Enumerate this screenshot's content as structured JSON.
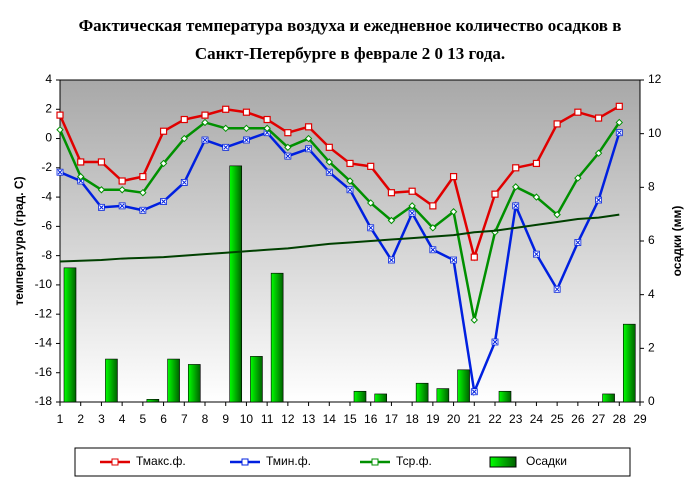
{
  "chart_data": {
    "type": "line",
    "title": "Фактическая температура воздуха и ежедневное количество осадков в Санкт-Петербурге в феврале 2 0 13 года.",
    "ylabel": "температура (град. С)",
    "y2label": "осадки (мм)",
    "x": [
      1,
      2,
      3,
      4,
      5,
      6,
      7,
      8,
      9,
      10,
      11,
      12,
      13,
      14,
      15,
      16,
      17,
      18,
      19,
      20,
      21,
      22,
      23,
      24,
      25,
      26,
      27,
      28
    ],
    "xlim": [
      1,
      29
    ],
    "xticks": [
      1,
      2,
      3,
      4,
      5,
      6,
      7,
      8,
      9,
      10,
      11,
      12,
      13,
      14,
      15,
      16,
      17,
      18,
      19,
      20,
      21,
      22,
      23,
      24,
      25,
      26,
      27,
      28,
      29
    ],
    "ylim": [
      -18,
      4
    ],
    "yticks": [
      -18,
      -16,
      -14,
      -12,
      -10,
      -8,
      -6,
      -4,
      -2,
      0,
      2,
      4
    ],
    "y2lim": [
      0,
      12
    ],
    "y2ticks": [
      0,
      2,
      4,
      6,
      8,
      10,
      12
    ],
    "series": [
      {
        "name": "Тмакс.ф.",
        "color": "#e00000",
        "marker": "square",
        "values": [
          1.6,
          -1.6,
          -1.6,
          -2.9,
          -2.6,
          0.5,
          1.3,
          1.6,
          2.0,
          1.8,
          1.3,
          0.4,
          0.8,
          -0.6,
          -1.7,
          -1.9,
          -3.7,
          -3.6,
          -4.6,
          -2.6,
          -8.1,
          -3.8,
          -2.0,
          -1.7,
          1.0,
          1.8,
          1.4,
          2.2
        ]
      },
      {
        "name": "Тмин.ф.",
        "color": "#0020e0",
        "marker": "x",
        "values": [
          -2.3,
          -2.9,
          -4.7,
          -4.6,
          -4.9,
          -4.3,
          -3.0,
          -0.1,
          -0.6,
          -0.1,
          0.4,
          -1.2,
          -0.7,
          -2.3,
          -3.5,
          -6.1,
          -8.3,
          -5.1,
          -7.6,
          -8.3,
          -17.3,
          -13.9,
          -4.6,
          -7.9,
          -10.3,
          -7.1,
          -4.2,
          0.4
        ]
      },
      {
        "name": "Тср.ф.",
        "color": "#009000",
        "marker": "diamond",
        "values": [
          0.6,
          -2.6,
          -3.5,
          -3.5,
          -3.7,
          -1.7,
          0.0,
          1.1,
          0.7,
          0.7,
          0.7,
          -0.6,
          0.0,
          -1.6,
          -2.9,
          -4.4,
          -5.6,
          -4.6,
          -6.1,
          -5.0,
          -12.4,
          -6.4,
          -3.3,
          -4.0,
          -5.2,
          -2.7,
          -1.0,
          1.1
        ]
      },
      {
        "name": "Осадки",
        "color": "#00cc00",
        "kind": "bar",
        "axis": "y2",
        "values": [
          5.0,
          null,
          1.6,
          null,
          0.1,
          1.6,
          1.4,
          null,
          8.8,
          1.7,
          4.8,
          null,
          null,
          null,
          0.4,
          0.3,
          null,
          0.7,
          0.5,
          1.2,
          null,
          0.4,
          null,
          null,
          null,
          null,
          0.3,
          2.9
        ]
      },
      {
        "color": "#004000",
        "values": [
          -8.4,
          -8.35,
          -8.3,
          -8.2,
          -8.15,
          -8.1,
          -8.0,
          -7.9,
          -7.8,
          -7.7,
          -7.6,
          -7.5,
          -7.35,
          -7.2,
          -7.1,
          -7.0,
          -6.9,
          -6.8,
          -6.7,
          -6.6,
          -6.4,
          -6.3,
          -6.1,
          -5.9,
          -5.7,
          -5.5,
          -5.4,
          -5.2
        ]
      }
    ]
  }
}
